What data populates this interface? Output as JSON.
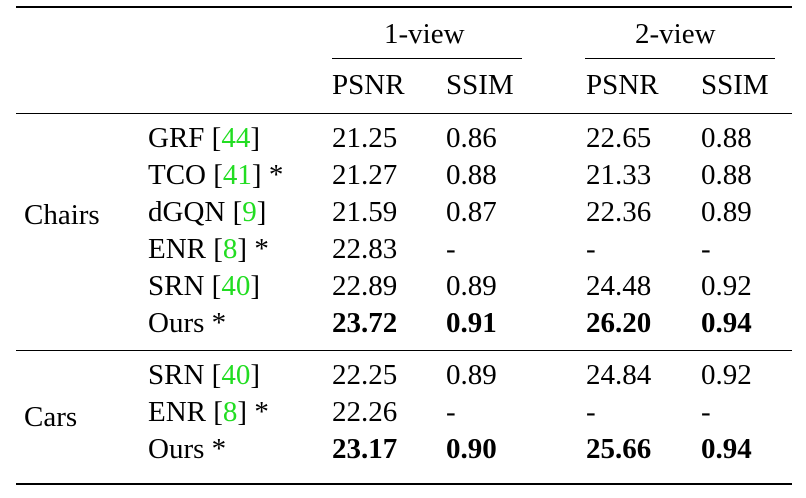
{
  "header": {
    "groups": [
      "1-view",
      "2-view"
    ],
    "metrics": [
      "PSNR",
      "SSIM",
      "PSNR",
      "SSIM"
    ]
  },
  "sections": [
    {
      "label": "Chairs",
      "rows": [
        {
          "method": "GRF",
          "cite": "44",
          "star": "",
          "values": [
            "21.25",
            "0.86",
            "22.65",
            "0.88"
          ]
        },
        {
          "method": "TCO",
          "cite": "41",
          "star": "*",
          "values": [
            "21.27",
            "0.88",
            "21.33",
            "0.88"
          ]
        },
        {
          "method": "dGQN",
          "cite": "9",
          "star": "",
          "values": [
            "21.59",
            "0.87",
            "22.36",
            "0.89"
          ]
        },
        {
          "method": "ENR",
          "cite": "8",
          "star": "*",
          "values": [
            "22.83",
            "-",
            "-",
            "-"
          ]
        },
        {
          "method": "SRN",
          "cite": "40",
          "star": "",
          "values": [
            "22.89",
            "0.89",
            "24.48",
            "0.92"
          ]
        },
        {
          "method": "Ours",
          "cite": "",
          "star": "*",
          "values": [
            "23.72",
            "0.91",
            "26.20",
            "0.94"
          ],
          "bold": true
        }
      ]
    },
    {
      "label": "Cars",
      "rows": [
        {
          "method": "SRN",
          "cite": "40",
          "star": "",
          "values": [
            "22.25",
            "0.89",
            "24.84",
            "0.92"
          ]
        },
        {
          "method": "ENR",
          "cite": "8",
          "star": "*",
          "values": [
            "22.26",
            "-",
            "-",
            "-"
          ]
        },
        {
          "method": "Ours",
          "cite": "",
          "star": "*",
          "values": [
            "23.17",
            "0.90",
            "25.66",
            "0.94"
          ],
          "bold": true
        }
      ]
    }
  ],
  "colors": {
    "citation": "#22dd22",
    "text": "#000000"
  }
}
